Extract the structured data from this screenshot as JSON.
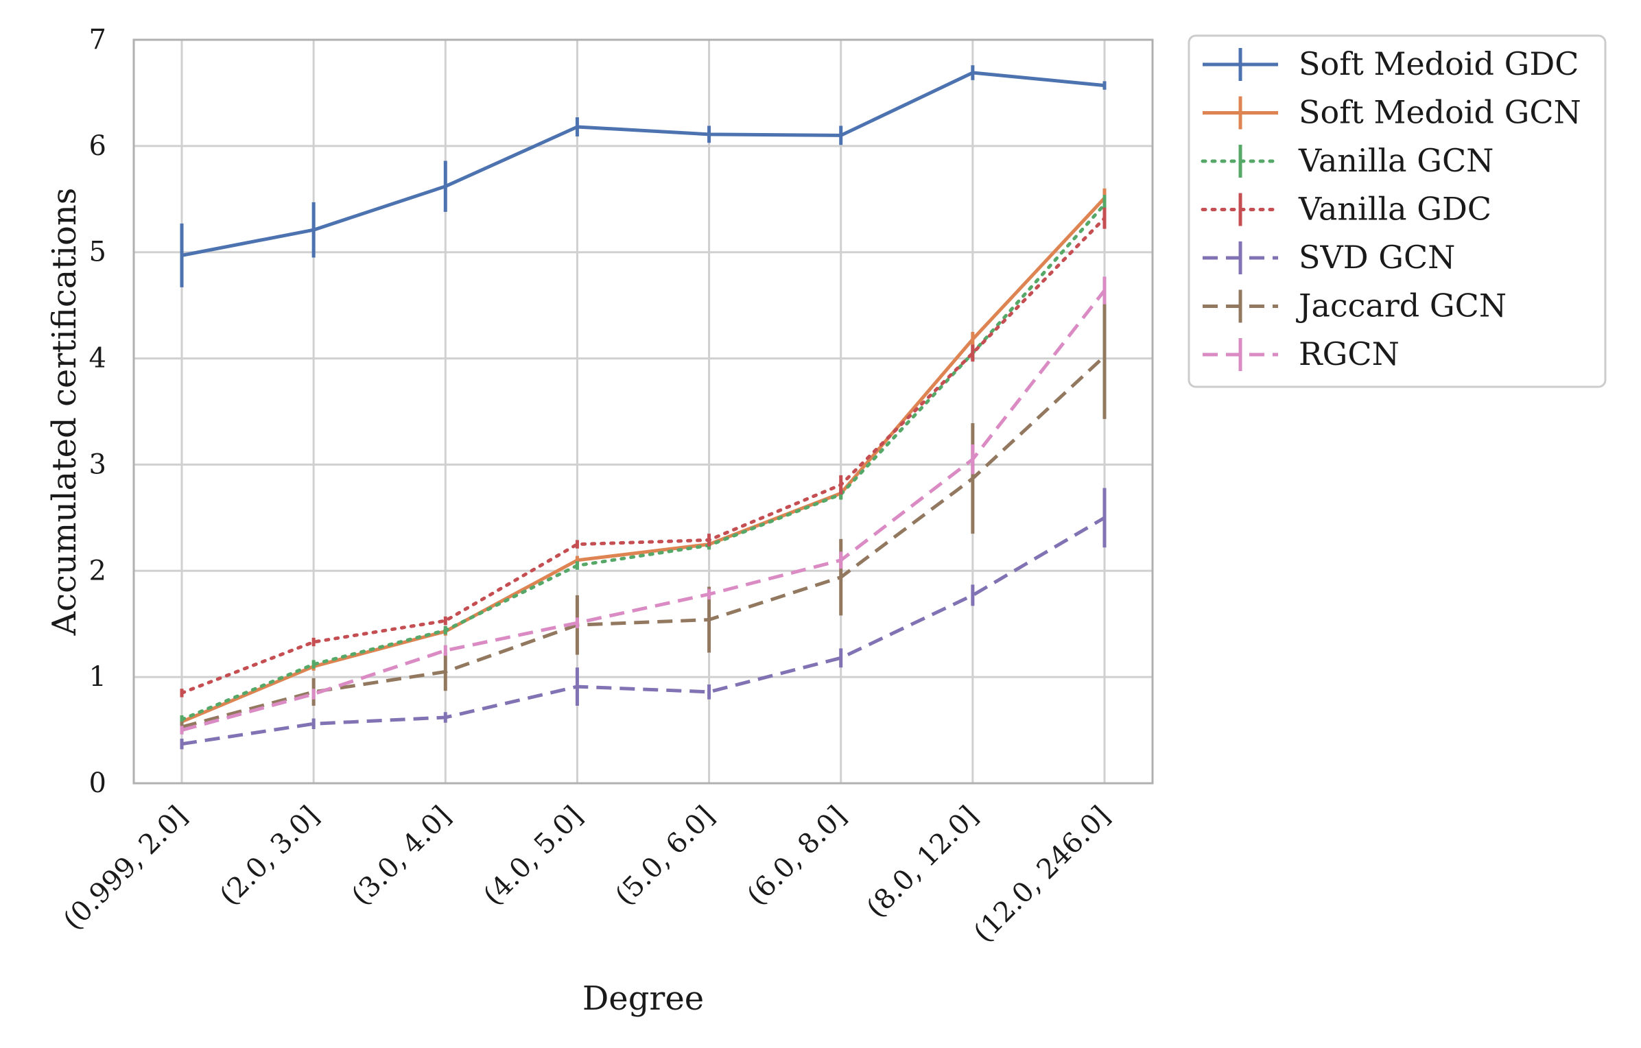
{
  "chart_data": {
    "type": "line",
    "xlabel": "Degree",
    "ylabel": "Accumulated certifications",
    "categories": [
      "(0.999, 2.0]",
      "(2.0, 3.0]",
      "(3.0, 4.0]",
      "(4.0, 5.0]",
      "(5.0, 6.0]",
      "(6.0, 8.0]",
      "(8.0, 12.0]",
      "(12.0, 246.0]"
    ],
    "ylim": [
      0,
      7
    ],
    "yticks": [
      0,
      1,
      2,
      3,
      4,
      5,
      6,
      7
    ],
    "grid": true,
    "legend_position": "outside-top-right",
    "series": [
      {
        "name": "Soft Medoid GDC",
        "color": "#4c72b0",
        "style": "solid",
        "values": [
          4.97,
          5.21,
          5.62,
          6.18,
          6.11,
          6.1,
          6.69,
          6.57
        ],
        "err": [
          0.3,
          0.26,
          0.24,
          0.09,
          0.08,
          0.09,
          0.07,
          0.04
        ]
      },
      {
        "name": "Soft Medoid GCN",
        "color": "#dd8452",
        "style": "solid",
        "values": [
          0.58,
          1.1,
          1.43,
          2.1,
          2.25,
          2.73,
          4.18,
          5.51
        ],
        "err": [
          0.04,
          0.04,
          0.04,
          0.04,
          0.04,
          0.05,
          0.07,
          0.09
        ]
      },
      {
        "name": "Vanilla GCN",
        "color": "#55a868",
        "style": "dotted",
        "values": [
          0.6,
          1.12,
          1.44,
          2.05,
          2.24,
          2.72,
          4.05,
          5.45
        ],
        "err": [
          0.04,
          0.04,
          0.04,
          0.04,
          0.04,
          0.05,
          0.07,
          0.09
        ]
      },
      {
        "name": "Vanilla GDC",
        "color": "#c44e52",
        "style": "dotted",
        "values": [
          0.85,
          1.33,
          1.53,
          2.25,
          2.29,
          2.81,
          4.05,
          5.32
        ],
        "err": [
          0.04,
          0.04,
          0.04,
          0.04,
          0.06,
          0.09,
          0.08,
          0.1
        ]
      },
      {
        "name": "SVD GCN",
        "color": "#8172b3",
        "style": "dashed",
        "values": [
          0.37,
          0.56,
          0.62,
          0.91,
          0.86,
          1.18,
          1.77,
          2.5
        ],
        "err": [
          0.05,
          0.05,
          0.05,
          0.18,
          0.07,
          0.09,
          0.1,
          0.28
        ]
      },
      {
        "name": "Jaccard GCN",
        "color": "#937860",
        "style": "dashed",
        "values": [
          0.53,
          0.86,
          1.05,
          1.49,
          1.54,
          1.94,
          2.87,
          4.02
        ],
        "err": [
          0.05,
          0.13,
          0.18,
          0.28,
          0.31,
          0.36,
          0.52,
          0.59
        ]
      },
      {
        "name": "RGCN",
        "color": "#da8bc3",
        "style": "dashed",
        "values": [
          0.5,
          0.84,
          1.25,
          1.51,
          1.78,
          2.1,
          3.05,
          4.64
        ],
        "err": [
          0.04,
          0.05,
          0.05,
          0.05,
          0.05,
          0.08,
          0.14,
          0.13
        ]
      }
    ]
  }
}
